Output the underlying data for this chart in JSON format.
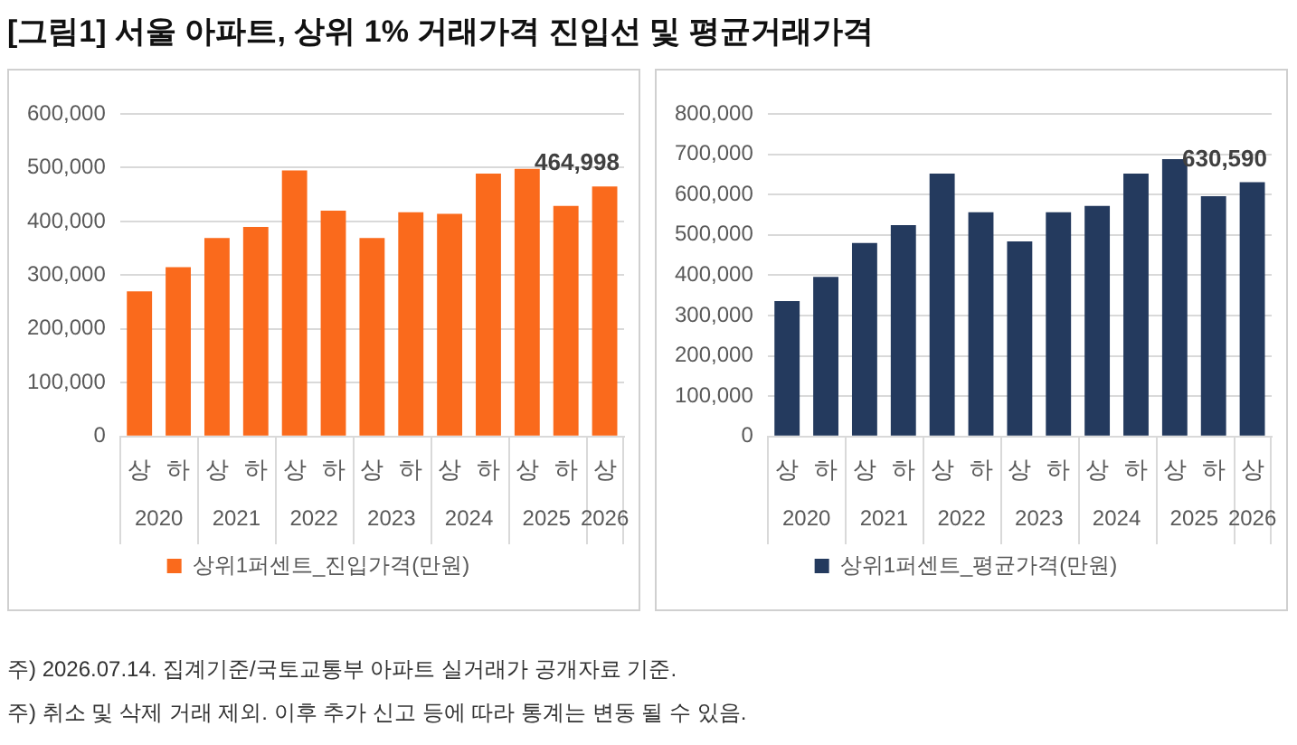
{
  "chart_data": [
    {
      "type": "other",
      "title": "[그림1] 서울 아파트, 상위 1% 거래가격 진입선 및 평균거래가격",
      "annotations": [
        "주) 2026.07.14. 집계기준/국토교통부 아파트 실거래가 공개자료 기준.",
        "주) 취소 및 삭제 거래 제외. 이후 추가 신고 등에 따라 통계는 변동 될 수 있음."
      ]
    },
    {
      "type": "bar",
      "categories": [
        "상",
        "하",
        "상",
        "하",
        "상",
        "하",
        "상",
        "하",
        "상",
        "하",
        "상",
        "하",
        "상"
      ],
      "annotations": [
        "2020",
        "2021",
        "2022",
        "2023",
        "2024",
        "2025",
        "2026"
      ],
      "series": [
        {
          "name": "상위1퍼센트_진입가격(만원)",
          "color": "#fa6a1c",
          "values": [
            270000,
            315000,
            369000,
            390000,
            495000,
            420000,
            369000,
            417000,
            414000,
            489000,
            498000,
            429000,
            464998
          ],
          "value_labels": [
            null,
            null,
            null,
            null,
            null,
            null,
            null,
            null,
            null,
            null,
            null,
            null,
            "464,998"
          ]
        }
      ],
      "ylim": [
        0,
        600000
      ],
      "yticks": [
        {
          "value": 0,
          "label": "0"
        },
        {
          "value": 100000,
          "label": "100,000"
        },
        {
          "value": 200000,
          "label": "200,000"
        },
        {
          "value": 300000,
          "label": "300,000"
        },
        {
          "value": 400000,
          "label": "400,000"
        },
        {
          "value": 500000,
          "label": "500,000"
        },
        {
          "value": 600000,
          "label": "600,000"
        }
      ],
      "grid": "y",
      "legend": "bottom"
    },
    {
      "type": "bar",
      "categories": [
        "상",
        "하",
        "상",
        "하",
        "상",
        "하",
        "상",
        "하",
        "상",
        "하",
        "상",
        "하",
        "상"
      ],
      "annotations": [
        "2020",
        "2021",
        "2022",
        "2023",
        "2024",
        "2025",
        "2026"
      ],
      "series": [
        {
          "name": "상위1퍼센트_평균가격(만원)",
          "color": "#243a5e",
          "values": [
            336000,
            396000,
            480000,
            524000,
            652000,
            556000,
            484000,
            556000,
            572000,
            652000,
            688000,
            596000,
            630590
          ],
          "value_labels": [
            null,
            null,
            null,
            null,
            null,
            null,
            null,
            null,
            null,
            null,
            null,
            null,
            "630,590"
          ]
        }
      ],
      "ylim": [
        0,
        800000
      ],
      "yticks": [
        {
          "value": 0,
          "label": "0"
        },
        {
          "value": 100000,
          "label": "100,000"
        },
        {
          "value": 200000,
          "label": "200,000"
        },
        {
          "value": 300000,
          "label": "300,000"
        },
        {
          "value": 400000,
          "label": "400,000"
        },
        {
          "value": 500000,
          "label": "500,000"
        },
        {
          "value": 600000,
          "label": "600,000"
        },
        {
          "value": 700000,
          "label": "700,000"
        },
        {
          "value": 800000,
          "label": "800,000"
        }
      ],
      "grid": "y",
      "legend": "bottom"
    }
  ]
}
